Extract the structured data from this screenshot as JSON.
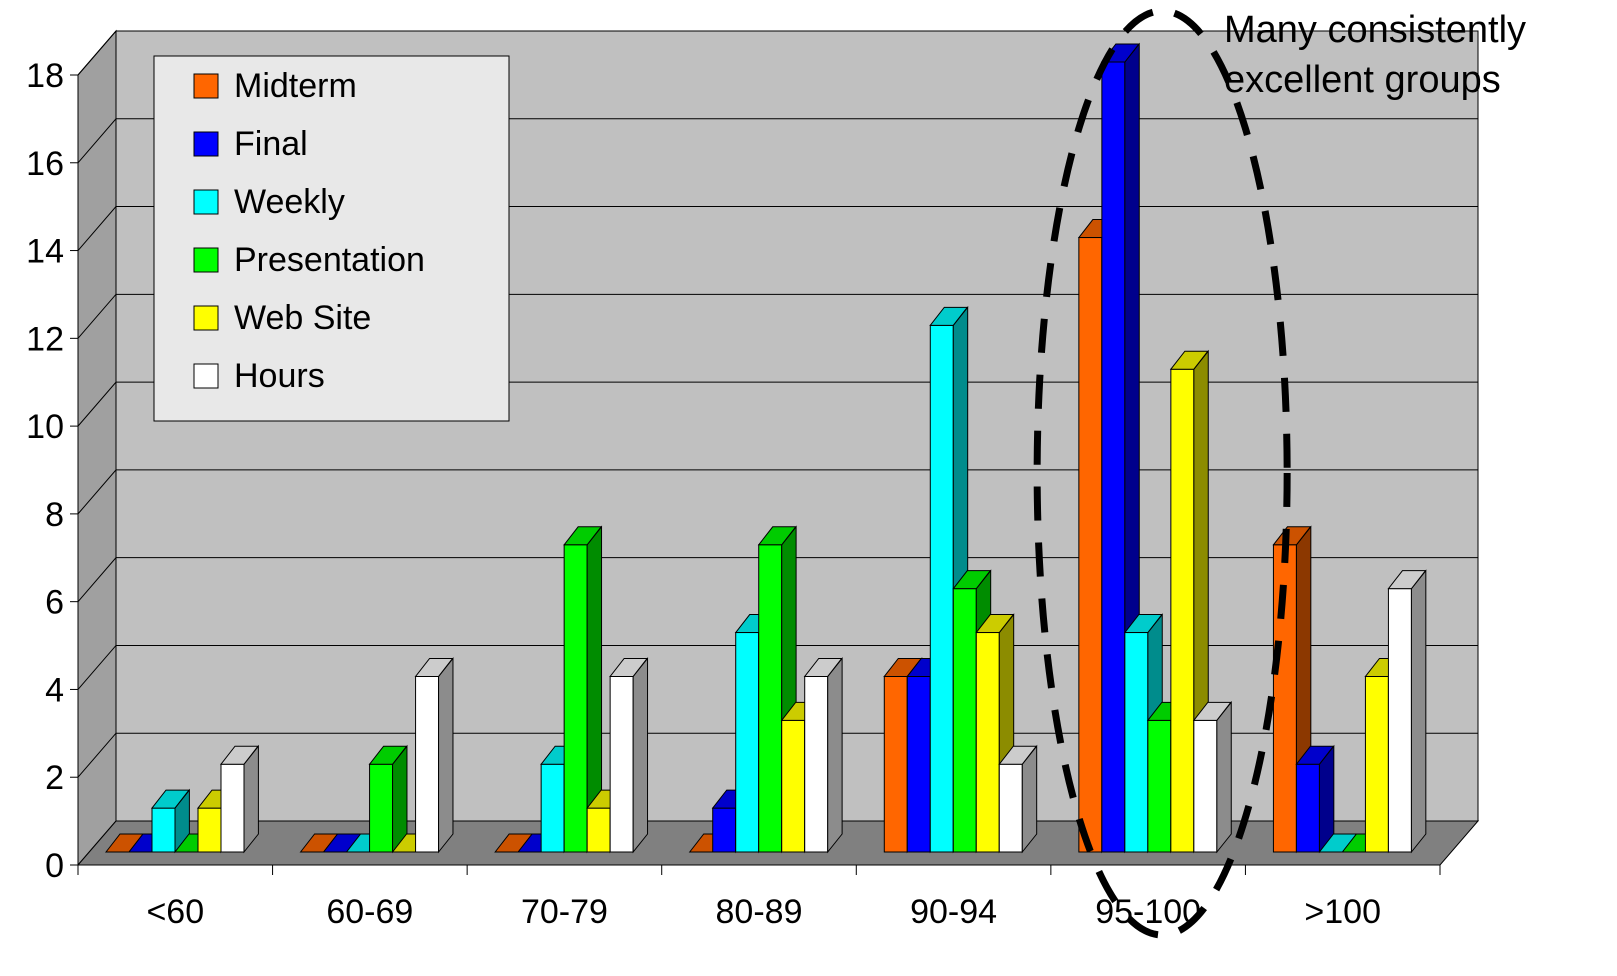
{
  "chart_data": {
    "type": "bar",
    "title": "",
    "xlabel": "",
    "ylabel": "",
    "categories": [
      "<60",
      "60-69",
      "70-79",
      "80-89",
      "90-94",
      "95-100",
      ">100"
    ],
    "ylim": [
      0,
      18
    ],
    "y_ticks": [
      "0",
      "2",
      "4",
      "6",
      "8",
      "10",
      "12",
      "14",
      "16",
      "18"
    ],
    "grid": true,
    "legend_position": "top-left",
    "series": [
      {
        "name": "Midterm",
        "values": [
          0,
          0,
          0,
          0,
          4,
          14,
          7
        ],
        "color": "#ff6600"
      },
      {
        "name": "Final",
        "values": [
          0,
          0,
          0,
          1,
          4,
          18,
          2
        ],
        "color": "#0000ff"
      },
      {
        "name": "Weekly",
        "values": [
          1,
          0,
          2,
          5,
          12,
          5,
          0
        ],
        "color": "#00ffff"
      },
      {
        "name": "Presentation",
        "values": [
          0,
          2,
          7,
          7,
          6,
          3,
          0
        ],
        "color": "#00ff00"
      },
      {
        "name": "Web Site",
        "values": [
          1,
          0,
          1,
          3,
          5,
          11,
          4
        ],
        "color": "#ffff00"
      },
      {
        "name": "Hours",
        "values": [
          2,
          4,
          4,
          4,
          2,
          3,
          6
        ],
        "color": "#ffffff"
      }
    ],
    "annotation": {
      "lines": [
        "Many consistently",
        "excellent groups"
      ],
      "highlighted_category": "95-100"
    }
  }
}
